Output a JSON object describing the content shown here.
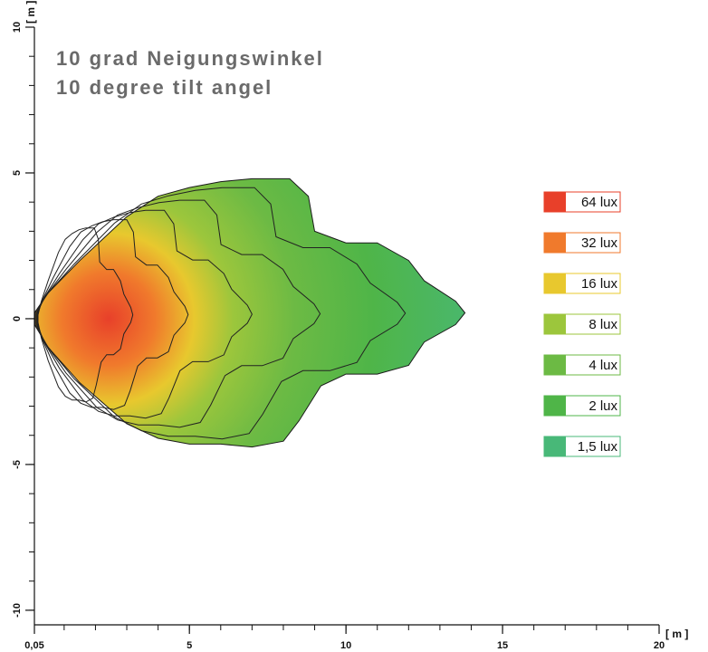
{
  "chart_data": {
    "type": "heatmap",
    "title_lines": [
      "10 grad Neigungswinkel",
      "10 degree tilt angel"
    ],
    "x_axis": {
      "unit_label": "[ m ]",
      "range": [
        0.05,
        20
      ],
      "ticks": [
        {
          "value": 0.05,
          "label": "0,05"
        },
        {
          "value": 5,
          "label": "5"
        },
        {
          "value": 10,
          "label": "10"
        },
        {
          "value": 15,
          "label": "15"
        },
        {
          "value": 20,
          "label": "20"
        }
      ],
      "minor_step": 1
    },
    "y_axis": {
      "unit_label": "[ m ]",
      "range": [
        -10.5,
        10
      ],
      "ticks": [
        {
          "value": 10,
          "label": "10"
        },
        {
          "value": 5,
          "label": "5"
        },
        {
          "value": 0,
          "label": "0"
        },
        {
          "value": -5,
          "label": "-5"
        },
        {
          "value": -10,
          "label": "-10"
        }
      ],
      "minor_step": 1
    },
    "legend_placement": "right",
    "levels": [
      {
        "label": "64  lux",
        "color": "#e8402a"
      },
      {
        "label": "32  lux",
        "color": "#f07a2c"
      },
      {
        "label": "16  lux",
        "color": "#e8c82e"
      },
      {
        "label": "8  lux",
        "color": "#9cc63c"
      },
      {
        "label": "4  lux",
        "color": "#6cba44"
      },
      {
        "label": "2  lux",
        "color": "#4fb548"
      },
      {
        "label": "1,5  lux",
        "color": "#48b878"
      }
    ],
    "outer_boundary": [
      [
        0.05,
        0.2
      ],
      [
        0.5,
        0.9
      ],
      [
        1.5,
        2.0
      ],
      [
        3,
        3.5
      ],
      [
        4,
        4.2
      ],
      [
        5,
        4.5
      ],
      [
        6,
        4.7
      ],
      [
        7,
        4.8
      ],
      [
        8.2,
        4.8
      ],
      [
        8.8,
        4.2
      ],
      [
        9,
        3.0
      ],
      [
        10,
        2.6
      ],
      [
        11,
        2.6
      ],
      [
        12,
        2.0
      ],
      [
        12.5,
        1.3
      ],
      [
        13.5,
        0.6
      ],
      [
        13.8,
        0.2
      ],
      [
        13.5,
        -0.2
      ],
      [
        12.5,
        -0.8
      ],
      [
        12,
        -1.6
      ],
      [
        11,
        -1.9
      ],
      [
        10,
        -1.9
      ],
      [
        9.2,
        -2.3
      ],
      [
        8.5,
        -3.5
      ],
      [
        8,
        -4.2
      ],
      [
        7,
        -4.4
      ],
      [
        6,
        -4.3
      ],
      [
        5,
        -4.3
      ],
      [
        4,
        -4.1
      ],
      [
        3,
        -3.6
      ],
      [
        1.5,
        -2.2
      ],
      [
        0.5,
        -1.0
      ],
      [
        0.05,
        -0.2
      ]
    ]
  }
}
